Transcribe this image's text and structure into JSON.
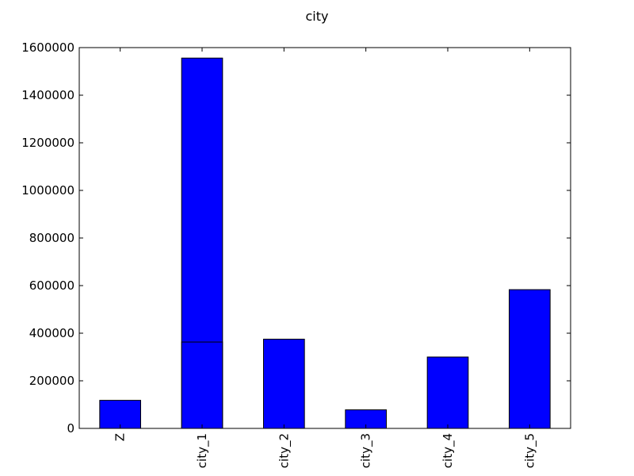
{
  "chart_data": {
    "type": "bar",
    "title": "city",
    "xlabel": "",
    "ylabel": "",
    "categories": [
      "Z",
      "city_1",
      "city_2",
      "city_3",
      "city_4",
      "city_5"
    ],
    "values": [
      118000,
      1556000,
      375000,
      78000,
      300000,
      583000
    ],
    "overlay_segments": [
      {
        "category": "city_1",
        "value": 363000
      }
    ],
    "ylim": [
      0,
      1600000
    ],
    "yticks": [
      0,
      200000,
      400000,
      600000,
      800000,
      1000000,
      1200000,
      1400000,
      1600000
    ],
    "ytick_labels": [
      "0",
      "200000",
      "400000",
      "600000",
      "800000",
      "1000000",
      "1200000",
      "1400000",
      "1600000"
    ],
    "grid": false,
    "legend": "none",
    "bar_color": "#0000ff",
    "edge_color": "#000000"
  }
}
